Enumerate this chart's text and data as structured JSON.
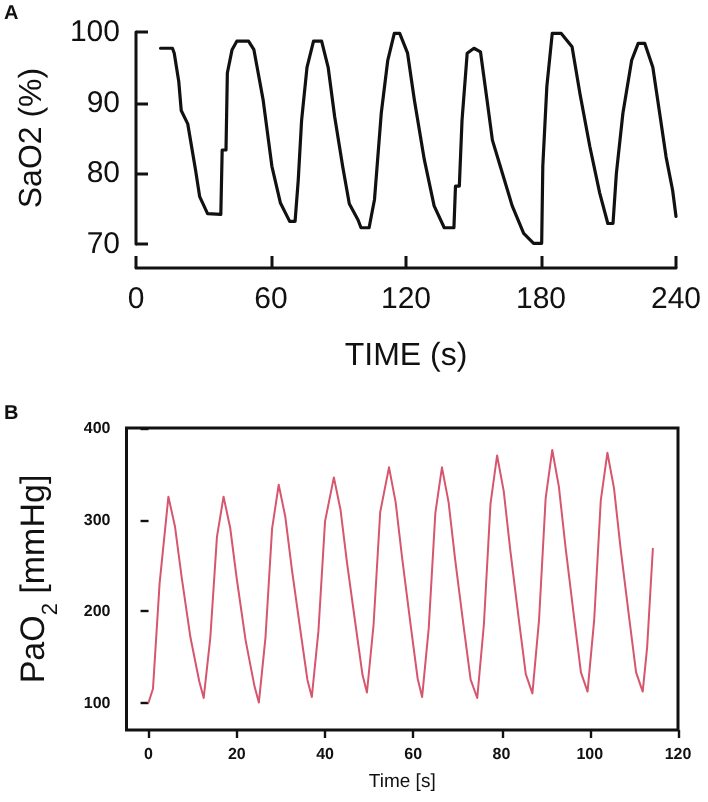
{
  "chart_data": [
    {
      "type": "line",
      "xlabel": "TIME (s)",
      "ylabel": "SaO2 (%)",
      "annotations": [
        "A"
      ],
      "marker": "none",
      "xlim": [
        0,
        240
      ],
      "xticks": [
        0,
        60,
        120,
        180,
        240
      ],
      "ylim": [
        70,
        100
      ],
      "yticks": [
        70,
        80,
        90,
        100
      ],
      "x": [
        10.9,
        16.2,
        17,
        19,
        20.1,
        23,
        26.5,
        28.3,
        31.8,
        37.7,
        38.3,
        40,
        40.6,
        42.7,
        44.8,
        50,
        52.4,
        56.5,
        60.4,
        64.2,
        68.3,
        70.7,
        72.1,
        73.6,
        76,
        78.9,
        82.5,
        85.4,
        88.3,
        91.9,
        94.8,
        98.7,
        100,
        103.6,
        106,
        109,
        111.9,
        114.8,
        117.2,
        120.7,
        123.7,
        128.1,
        132.5,
        137,
        141.3,
        142,
        143.7,
        144.9,
        147.2,
        150.2,
        153.1,
        156,
        158.4,
        161.9,
        167.2,
        172.3,
        176.7,
        180.3,
        180.8,
        182.6,
        185,
        189,
        193.8,
        197.3,
        201.7,
        206.1,
        209.7,
        212,
        213.5,
        216.4,
        220.3,
        223.2,
        226.1,
        229.7,
        233.2,
        235.6,
        238.5,
        240
      ],
      "series": [
        {
          "color": "#111111",
          "values": [
            97.7,
            97.7,
            97,
            93,
            88.9,
            87,
            80.4,
            76.7,
            74.3,
            74.2,
            83.3,
            83.3,
            94.2,
            97.5,
            98.7,
            98.7,
            97.5,
            90.4,
            81,
            75.8,
            73.2,
            73.2,
            79,
            87.5,
            95,
            98.7,
            98.7,
            95,
            88,
            80.9,
            75.7,
            73.4,
            72.3,
            72.3,
            76.3,
            88.5,
            96,
            99.8,
            99.8,
            97,
            90.4,
            82,
            75.4,
            72.3,
            72.3,
            78.2,
            78.2,
            87.5,
            97,
            97.7,
            97.2,
            90.4,
            84.7,
            81,
            75.4,
            71.5,
            70.1,
            70.1,
            81,
            92.3,
            99.8,
            99.8,
            97.9,
            91.3,
            83.8,
            77.2,
            72.9,
            72.9,
            80,
            88.5,
            96,
            98.4,
            98.4,
            95,
            87.5,
            82.3,
            77.6,
            73.9
          ]
        }
      ]
    },
    {
      "type": "line",
      "xlabel": "Time [s]",
      "ylabel": "PaO$_{2}$ [mmHg]",
      "annotations": [
        "B"
      ],
      "marker": "none",
      "xlim": [
        -5,
        120
      ],
      "xticks": [
        0,
        20,
        40,
        60,
        80,
        100,
        120
      ],
      "ylim": [
        70,
        400
      ],
      "yticks": [
        100,
        200,
        300,
        400
      ],
      "x": [
        0,
        1,
        2.5,
        4.5,
        6,
        7.5,
        9.5,
        11.5,
        12.5,
        14,
        15.5,
        17,
        18.5,
        20,
        22,
        24,
        25,
        26.5,
        28,
        29.5,
        31,
        32.5,
        34.5,
        36,
        37,
        38.5,
        40,
        42,
        43.5,
        45,
        47,
        48.5,
        49.5,
        51,
        52.5,
        54.5,
        56,
        57.5,
        59.5,
        61,
        62,
        63.5,
        65,
        66.5,
        68,
        69.5,
        71.5,
        73,
        74.5,
        76,
        77.5,
        79,
        80.5,
        82,
        84,
        85.5,
        87,
        88.5,
        90,
        91.5,
        93,
        94.5,
        96.5,
        98,
        99.5,
        101,
        102.5,
        104,
        105.5,
        107,
        109,
        110.5,
        112,
        113,
        114.3
      ],
      "series": [
        {
          "color": "#d6566e",
          "values": [
            100,
            115,
            230,
            325,
            292,
            237,
            171,
            123,
            105,
            171,
            281,
            325,
            291,
            235,
            168,
            118,
            100,
            171,
            290,
            338,
            303,
            245,
            176,
            125,
            106,
            178,
            298,
            346,
            311,
            252,
            182,
            130,
            111,
            185,
            308,
            357,
            319,
            257,
            181,
            126,
            106,
            181,
            307,
            357,
            319,
            256,
            180,
            125,
            105,
            185,
            317,
            370,
            331,
            266,
            188,
            131,
            110,
            190,
            323,
            376,
            336,
            270,
            191,
            133,
            112,
            190,
            321,
            373,
            334,
            268,
            190,
            133,
            112,
            160,
            268
          ]
        }
      ]
    }
  ]
}
